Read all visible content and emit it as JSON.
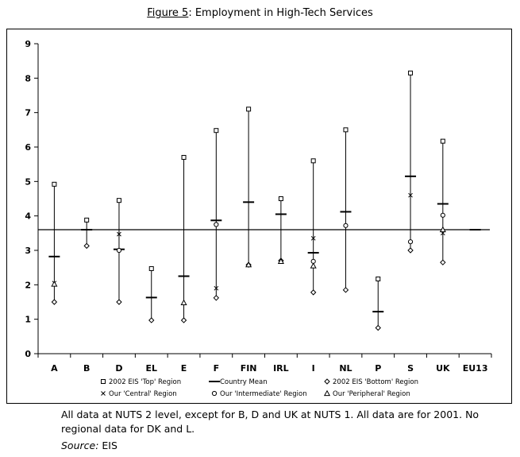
{
  "figure": {
    "label": "Figure 5",
    "title": "Employment in High-Tech Services"
  },
  "chart_data": {
    "type": "scatter",
    "ylim": [
      0,
      9
    ],
    "yticks": [
      0,
      1,
      2,
      3,
      4,
      5,
      6,
      7,
      8,
      9
    ],
    "grid": false,
    "reference_line": 3.6,
    "categories": [
      "A",
      "B",
      "D",
      "EL",
      "E",
      "F",
      "FIN",
      "IRL",
      "I",
      "NL",
      "P",
      "S",
      "UK",
      "EU13"
    ],
    "series": [
      {
        "name": "2002 EIS 'Top' Region",
        "marker": "square",
        "values": [
          4.92,
          3.88,
          4.45,
          2.47,
          5.7,
          6.48,
          7.1,
          4.5,
          5.6,
          6.5,
          2.17,
          8.15,
          6.17,
          null
        ]
      },
      {
        "name": "Country Mean",
        "marker": "dash",
        "values": [
          2.82,
          3.6,
          3.03,
          1.63,
          2.25,
          3.87,
          4.4,
          4.05,
          2.93,
          4.12,
          1.22,
          5.15,
          4.35,
          3.6
        ]
      },
      {
        "name": "2002 EIS 'Bottom' Region",
        "marker": "diamond",
        "values": [
          1.5,
          3.13,
          1.5,
          0.97,
          0.97,
          1.62,
          2.58,
          2.7,
          1.78,
          1.85,
          0.75,
          3.0,
          2.65,
          null
        ]
      },
      {
        "name": "Our 'Central' Region",
        "marker": "cross",
        "values": [
          2.05,
          null,
          3.47,
          null,
          null,
          1.9,
          null,
          null,
          3.35,
          null,
          null,
          4.6,
          3.5,
          null
        ]
      },
      {
        "name": "Our 'Intermediate' Region",
        "marker": "circle",
        "values": [
          null,
          null,
          3.0,
          null,
          null,
          3.75,
          null,
          null,
          2.68,
          3.72,
          null,
          3.25,
          4.02,
          null
        ]
      },
      {
        "name": "Our 'Peripheral' Region",
        "marker": "triangle",
        "values": [
          2.02,
          null,
          null,
          null,
          1.48,
          null,
          2.58,
          2.68,
          2.55,
          null,
          null,
          null,
          3.6,
          null
        ]
      }
    ],
    "legend_position": "bottom"
  },
  "footnote": {
    "text": "All data at NUTS 2 level, except for B, D and UK at NUTS 1. All data are for 2001. No regional data for DK and L.",
    "source_label": "Source:",
    "source_value": "EIS"
  }
}
